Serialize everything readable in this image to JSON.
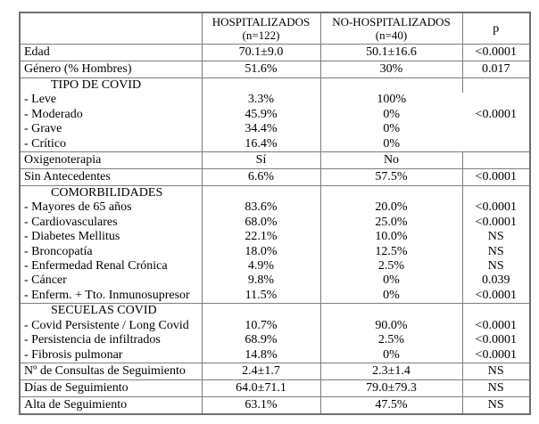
{
  "table": {
    "columns": [
      {
        "title": "",
        "n": ""
      },
      {
        "title": "HOSPITALIZADOS",
        "n": "(n=122)"
      },
      {
        "title": "NO-HOSPITALIZADOS",
        "n": "(n=40)"
      },
      {
        "title": "p",
        "n": ""
      }
    ],
    "rows": [
      {
        "kind": "single",
        "label": "Edad",
        "h": "70.1±9.0",
        "nh": "50.1±16.6",
        "p": "<0.0001"
      },
      {
        "kind": "single",
        "label": "Género (% Hombres)",
        "h": "51.6%",
        "nh": "30%",
        "p": "0.017"
      },
      {
        "kind": "section",
        "label": "TIPO DE COVID",
        "h": "",
        "nh": "",
        "p": "<0.0001",
        "p_rowspan": 5
      },
      {
        "kind": "sub",
        "label": "- Leve",
        "h": "3.3%",
        "nh": "100%",
        "merged_p": true
      },
      {
        "kind": "sub",
        "label": "- Moderado",
        "h": "45.9%",
        "nh": "0%",
        "merged_p": true
      },
      {
        "kind": "sub",
        "label": "- Grave",
        "h": "34.4%",
        "nh": "0%",
        "merged_p": true
      },
      {
        "kind": "sub",
        "label": "- Crítico",
        "h": "16.4%",
        "nh": "0%",
        "merged_p": true
      },
      {
        "kind": "single",
        "label": "Oxigenoterapia",
        "h": "Sí",
        "nh": "No",
        "p": ""
      },
      {
        "kind": "single",
        "label": "Sin Antecedentes",
        "h": "6.6%",
        "nh": "57.5%",
        "p": "<0.0001"
      },
      {
        "kind": "section",
        "label": "COMORBILIDADES",
        "h": "",
        "nh": "",
        "p": ""
      },
      {
        "kind": "sub",
        "label": "- Mayores de 65 años",
        "h": "83.6%",
        "nh": "20.0%",
        "p": "<0.0001"
      },
      {
        "kind": "sub",
        "label": "- Cardiovasculares",
        "h": "68.0%",
        "nh": "25.0%",
        "p": "<0.0001"
      },
      {
        "kind": "sub",
        "label": "- Diabetes Mellitus",
        "h": "22.1%",
        "nh": "10.0%",
        "p": "NS"
      },
      {
        "kind": "sub",
        "label": "- Broncopatía",
        "h": "18.0%",
        "nh": "12.5%",
        "p": "NS"
      },
      {
        "kind": "sub",
        "label": "- Enfermedad Renal Crónica",
        "h": "4.9%",
        "nh": "2.5%",
        "p": "NS"
      },
      {
        "kind": "sub",
        "label": "- Cáncer",
        "h": "9.8%",
        "nh": "0%",
        "p": "0.039"
      },
      {
        "kind": "sub",
        "label": "- Enferm. + Tto. Inmunosupresor",
        "h": "11.5%",
        "nh": "0%",
        "p": "<0.0001"
      },
      {
        "kind": "section",
        "label": "SECUELAS COVID",
        "h": "",
        "nh": "",
        "p": ""
      },
      {
        "kind": "sub",
        "label": "- Covid Persistente / Long Covid",
        "h": "10.7%",
        "nh": "90.0%",
        "p": "<0.0001"
      },
      {
        "kind": "sub",
        "label": "- Persistencia de infiltrados",
        "h": "68.9%",
        "nh": "2.5%",
        "p": "<0.0001"
      },
      {
        "kind": "sub",
        "label": "- Fibrosis pulmonar",
        "h": "14.8%",
        "nh": "0%",
        "p": "<0.0001"
      },
      {
        "kind": "single",
        "label": "Nº de Consultas de Seguimiento",
        "h": "2.4±1.7",
        "nh": "2.3±1.4",
        "p": "NS"
      },
      {
        "kind": "single",
        "label": "Días de Seguimiento",
        "h": "64.0±71.1",
        "nh": "79.0±79.3",
        "p": "NS"
      },
      {
        "kind": "single",
        "label": "Alta de Seguimiento",
        "h": "63.1%",
        "nh": "47.5%",
        "p": "NS"
      }
    ]
  }
}
